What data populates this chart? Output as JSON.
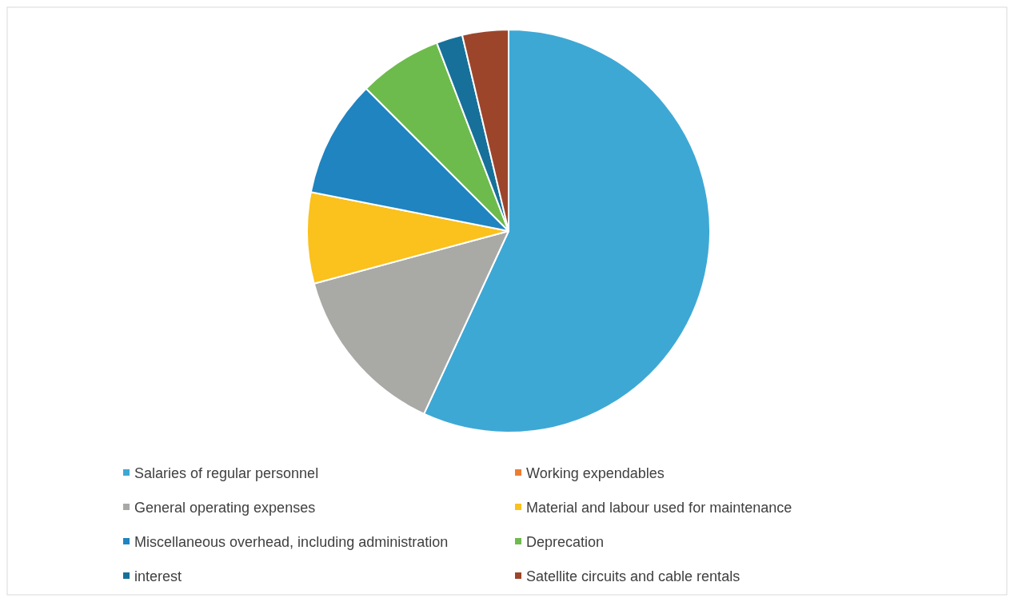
{
  "chart_data": {
    "type": "pie",
    "categories": [
      "Salaries of regular personnel",
      "Working expendables",
      "General operating expenses",
      "Material and labour used for maintenance",
      "Miscellaneous overhead, including administration",
      "Deprecation",
      "interest",
      "Satellite circuits and cable rentals"
    ],
    "values": [
      56.9,
      0,
      13.9,
      7.3,
      9.4,
      6.7,
      2.1,
      3.7
    ],
    "colors": [
      "#3ea8d5",
      "#ed7d31",
      "#a9a9a6",
      "#fbc11c",
      "#1f84c0",
      "#6dbb4c",
      "#17709a",
      "#9c452b"
    ],
    "legend": "bottom"
  }
}
